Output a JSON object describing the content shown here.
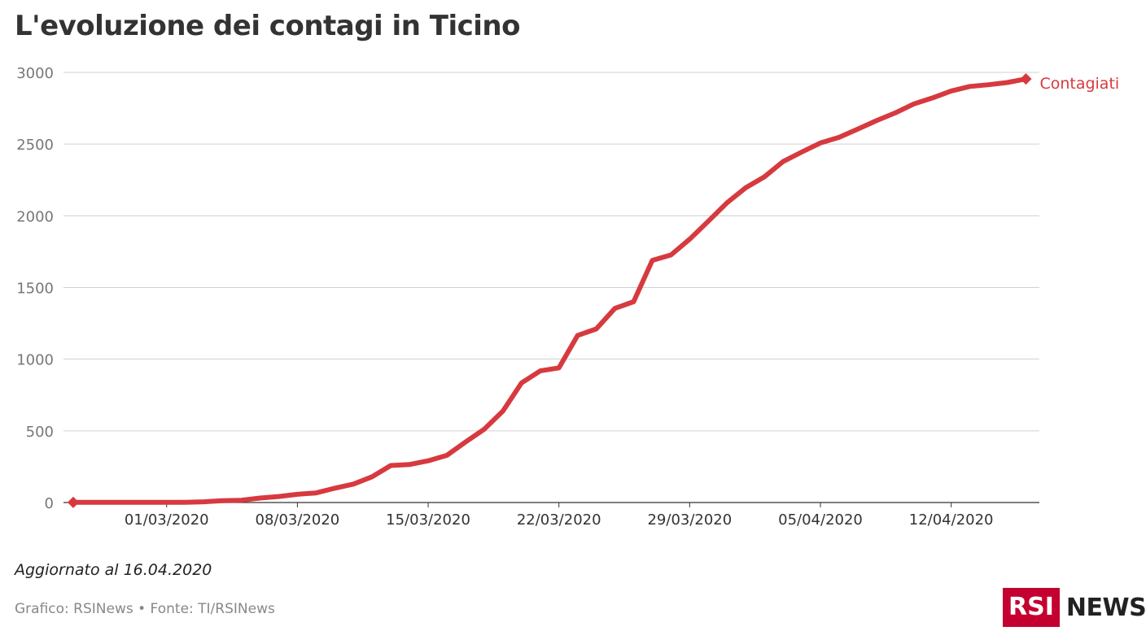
{
  "title": "L'evoluzione dei contagi in Ticino",
  "updated": "Aggiornato al 16.04.2020",
  "credit": "Grafico: RSINews • Fonte: TI/RSINews",
  "logo": {
    "box_text": "RSI",
    "news_text": "NEWS",
    "brand_color": "#c3002f"
  },
  "colors": {
    "series": "#d63a3f",
    "grid": "#d0d0d0",
    "tick": "#777777"
  },
  "chart_data": {
    "type": "line",
    "ylim": [
      0,
      3000
    ],
    "yticks": [
      "0",
      "500",
      "1000",
      "1500",
      "2000",
      "2500",
      "3000"
    ],
    "xticks": [
      {
        "label": "01/03/2020",
        "day": 5
      },
      {
        "label": "08/03/2020",
        "day": 12
      },
      {
        "label": "15/03/2020",
        "day": 19
      },
      {
        "label": "22/03/2020",
        "day": 26
      },
      {
        "label": "29/03/2020",
        "day": 33
      },
      {
        "label": "05/04/2020",
        "day": 40
      },
      {
        "label": "12/04/2020",
        "day": 47
      }
    ],
    "grid": true,
    "series": [
      {
        "name": "Contagiati",
        "x": [
          "2020-02-25",
          "2020-02-26",
          "2020-02-27",
          "2020-02-28",
          "2020-02-29",
          "2020-03-01",
          "2020-03-02",
          "2020-03-03",
          "2020-03-04",
          "2020-03-05",
          "2020-03-06",
          "2020-03-07",
          "2020-03-08",
          "2020-03-09",
          "2020-03-10",
          "2020-03-11",
          "2020-03-12",
          "2020-03-13",
          "2020-03-14",
          "2020-03-15",
          "2020-03-16",
          "2020-03-17",
          "2020-03-18",
          "2020-03-19",
          "2020-03-20",
          "2020-03-21",
          "2020-03-22",
          "2020-03-23",
          "2020-03-24",
          "2020-03-25",
          "2020-03-26",
          "2020-03-27",
          "2020-03-28",
          "2020-03-29",
          "2020-03-30",
          "2020-03-31",
          "2020-04-01",
          "2020-04-02",
          "2020-04-03",
          "2020-04-04",
          "2020-04-05",
          "2020-04-06",
          "2020-04-07",
          "2020-04-08",
          "2020-04-09",
          "2020-04-10",
          "2020-04-11",
          "2020-04-12",
          "2020-04-13",
          "2020-04-14",
          "2020-04-15",
          "2020-04-16"
        ],
        "values": [
          1,
          1,
          1,
          1,
          1,
          1,
          1,
          5,
          13,
          16,
          31,
          42,
          57,
          67,
          100,
          129,
          180,
          258,
          265,
          291,
          329,
          422,
          511,
          638,
          834,
          918,
          939,
          1165,
          1211,
          1354,
          1401,
          1688,
          1727,
          1837,
          1962,
          2091,
          2195,
          2271,
          2378,
          2444,
          2508,
          2547,
          2604,
          2663,
          2717,
          2780,
          2822,
          2870,
          2902,
          2914,
          2929,
          2954
        ]
      }
    ]
  }
}
